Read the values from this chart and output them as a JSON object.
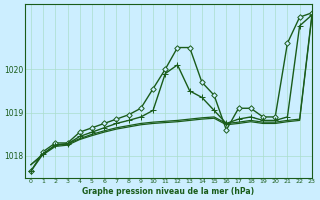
{
  "title": "Graphe pression niveau de la mer (hPa)",
  "bg_color": "#cceeff",
  "grid_color": "#aaddcc",
  "line_color": "#1a5c1a",
  "xlim": [
    -0.5,
    23
  ],
  "ylim": [
    1017.5,
    1021.5
  ],
  "yticks": [
    1018,
    1019,
    1020
  ],
  "xticks": [
    0,
    1,
    2,
    3,
    4,
    5,
    6,
    7,
    8,
    9,
    10,
    11,
    12,
    13,
    14,
    15,
    16,
    17,
    18,
    19,
    20,
    21,
    22,
    23
  ],
  "series": [
    {
      "x": [
        0,
        1,
        2,
        3,
        4,
        5,
        6,
        7,
        8,
        9,
        10,
        11,
        12,
        13,
        14,
        15,
        16,
        17,
        18,
        19,
        20,
        21,
        22,
        23
      ],
      "y": [
        1017.65,
        1018.1,
        1018.3,
        1018.3,
        1018.55,
        1018.65,
        1018.75,
        1018.85,
        1018.95,
        1019.1,
        1019.55,
        1020.0,
        1020.5,
        1020.5,
        1019.7,
        1019.4,
        1018.6,
        1019.1,
        1019.1,
        1018.9,
        1018.9,
        1020.6,
        1021.2,
        1021.3
      ],
      "marker": "D",
      "linewidth": 1.0,
      "markersize": 2.8,
      "mfc": "#cceeff"
    },
    {
      "x": [
        0,
        1,
        2,
        3,
        4,
        5,
        6,
        7,
        8,
        9,
        10,
        11,
        12,
        13,
        14,
        15,
        16,
        17,
        18,
        19,
        20,
        21,
        22,
        23
      ],
      "y": [
        1017.65,
        1018.05,
        1018.25,
        1018.28,
        1018.45,
        1018.55,
        1018.65,
        1018.75,
        1018.82,
        1018.9,
        1019.05,
        1019.9,
        1020.1,
        1019.5,
        1019.35,
        1019.05,
        1018.75,
        1018.85,
        1018.9,
        1018.82,
        1018.82,
        1018.9,
        1021.0,
        1021.25
      ],
      "marker": "+",
      "linewidth": 1.0,
      "markersize": 4.0,
      "mfc": "#1a5c1a"
    },
    {
      "x": [
        0,
        1,
        2,
        3,
        4,
        5,
        6,
        7,
        8,
        9,
        10,
        11,
        12,
        13,
        14,
        15,
        16,
        17,
        18,
        19,
        20,
        21,
        22,
        23
      ],
      "y": [
        1017.8,
        1018.05,
        1018.25,
        1018.28,
        1018.4,
        1018.5,
        1018.58,
        1018.65,
        1018.7,
        1018.75,
        1018.78,
        1018.8,
        1018.82,
        1018.85,
        1018.88,
        1018.9,
        1018.75,
        1018.78,
        1018.82,
        1018.78,
        1018.78,
        1018.82,
        1018.85,
        1021.25
      ],
      "marker": null,
      "linewidth": 0.9,
      "markersize": 0,
      "mfc": "#1a5c1a"
    },
    {
      "x": [
        0,
        1,
        2,
        3,
        4,
        5,
        6,
        7,
        8,
        9,
        10,
        11,
        12,
        13,
        14,
        15,
        16,
        17,
        18,
        19,
        20,
        21,
        22,
        23
      ],
      "y": [
        1017.8,
        1018.03,
        1018.22,
        1018.25,
        1018.38,
        1018.47,
        1018.55,
        1018.62,
        1018.67,
        1018.72,
        1018.75,
        1018.77,
        1018.79,
        1018.82,
        1018.85,
        1018.87,
        1018.72,
        1018.75,
        1018.79,
        1018.75,
        1018.75,
        1018.79,
        1018.82,
        1021.2
      ],
      "marker": null,
      "linewidth": 0.9,
      "markersize": 0,
      "mfc": "#1a5c1a"
    }
  ]
}
